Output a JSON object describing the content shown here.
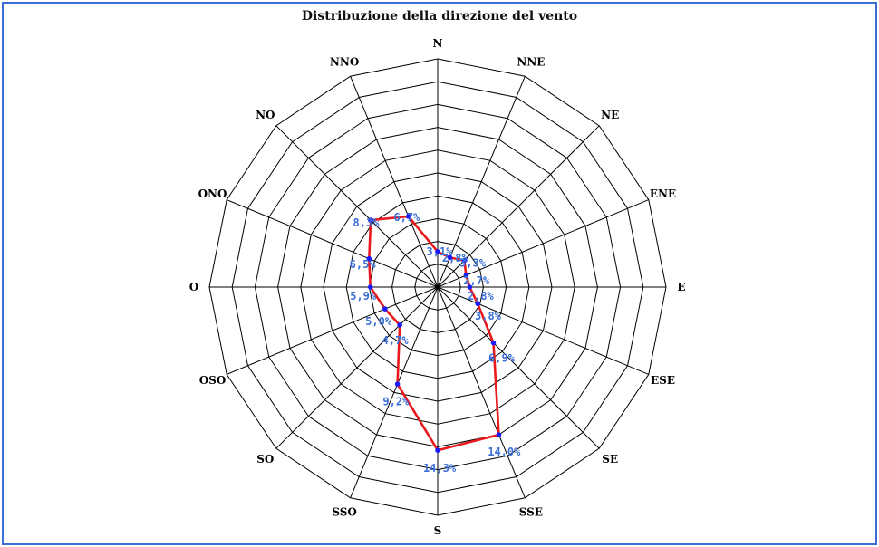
{
  "chart_data": {
    "type": "radar",
    "title": "Distribuzione della direzione del vento",
    "directions": [
      "N",
      "NNE",
      "NE",
      "ENE",
      "E",
      "ESE",
      "SE",
      "SSE",
      "S",
      "SSO",
      "SO",
      "OSO",
      "O",
      "ONO",
      "NO",
      "NNO"
    ],
    "values": [
      3.1,
      2.8,
      3.3,
      2.7,
      2.8,
      3.8,
      6.9,
      14.0,
      14.3,
      9.2,
      4.7,
      5.0,
      5.9,
      6.5,
      8.3,
      6.7
    ],
    "value_labels": [
      "3,1%",
      "2,8%",
      "3,3%",
      "2,7%",
      "2,8%",
      "3,8%",
      "6,9%",
      "14,0%",
      "14,3%",
      "9,2%",
      "4,7%",
      "5,0%",
      "5,9%",
      "6,5%",
      "8,3%",
      "6,7%"
    ],
    "rmax": 20,
    "rings": 10,
    "colors": {
      "series_line": "#e8191c",
      "series_point": "#1a1aff",
      "value_label": "#3b6fd6",
      "frame": "#3b6fd6"
    }
  }
}
